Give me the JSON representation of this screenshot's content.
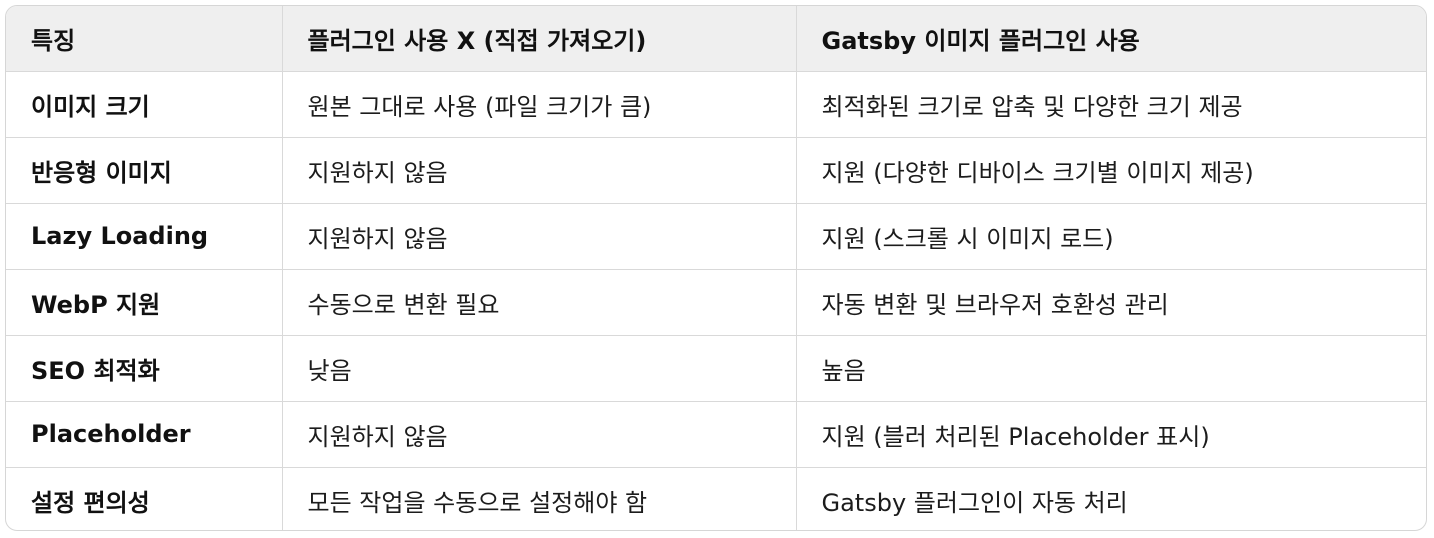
{
  "table": {
    "headers": [
      "특징",
      "플러그인 사용 X (직접 가져오기)",
      "Gatsby 이미지 플러그인 사용"
    ],
    "rows": [
      [
        "이미지 크기",
        "원본 그대로 사용 (파일 크기가 큼)",
        "최적화된 크기로 압축 및 다양한 크기 제공"
      ],
      [
        "반응형 이미지",
        "지원하지 않음",
        "지원 (다양한 디바이스 크기별 이미지 제공)"
      ],
      [
        "Lazy Loading",
        "지원하지 않음",
        "지원 (스크롤 시 이미지 로드)"
      ],
      [
        "WebP 지원",
        "수동으로 변환 필요",
        "자동 변환 및 브라우저 호환성 관리"
      ],
      [
        "SEO 최적화",
        "낮음",
        "높음"
      ],
      [
        "Placeholder",
        "지원하지 않음",
        "지원 (블러 처리된 Placeholder 표시)"
      ],
      [
        "설정 편의성",
        "모든 작업을 수동으로 설정해야 함",
        "Gatsby 플러그인이 자동 처리"
      ]
    ]
  }
}
